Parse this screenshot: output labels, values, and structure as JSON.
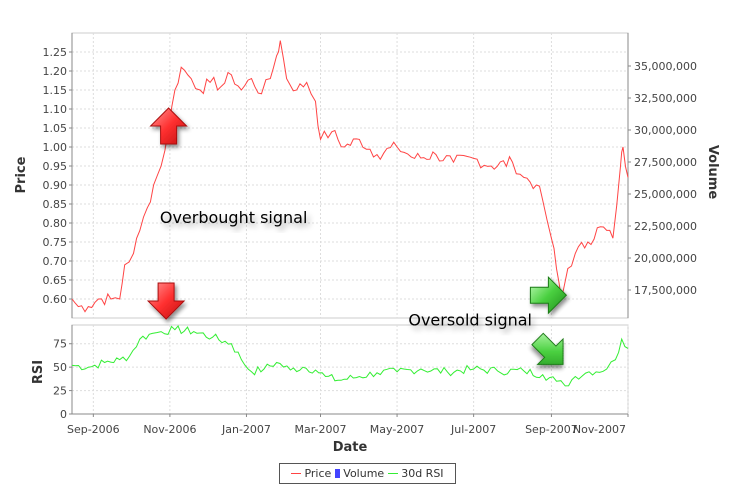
{
  "chart_data": {
    "type": "line",
    "title": "",
    "xlabel": "Date",
    "x_ticks": [
      "Sep-2006",
      "Nov-2006",
      "Jan-2007",
      "Mar-2007",
      "May-2007",
      "Jul-2007",
      "Sep-2007",
      "Nov-2007"
    ],
    "x_range": [
      "2006-08-15",
      "2007-11-01"
    ],
    "price_panel": {
      "ylabel": "Price",
      "ylim": [
        0.55,
        1.3
      ],
      "yticks": [
        "0.60",
        "0.65",
        "0.70",
        "0.75",
        "0.80",
        "0.85",
        "0.90",
        "0.95",
        "1.00",
        "1.05",
        "1.10",
        "1.15",
        "1.20",
        "1.25"
      ],
      "y2label": "Volume",
      "y2ticks": [
        "17,500,000",
        "20,000,000",
        "22,500,000",
        "25,000,000",
        "27,500,000",
        "30,000,000",
        "32,500,000",
        "35,000,000"
      ],
      "series": {
        "name": "Price",
        "color": "#ff4444",
        "points": [
          [
            "2006-08-15",
            0.6
          ],
          [
            "2006-08-20",
            0.58
          ],
          [
            "2006-08-28",
            0.58
          ],
          [
            "2006-09-05",
            0.6
          ],
          [
            "2006-09-15",
            0.6
          ],
          [
            "2006-09-22",
            0.6
          ],
          [
            "2006-09-26",
            0.69
          ],
          [
            "2006-10-03",
            0.72
          ],
          [
            "2006-10-08",
            0.78
          ],
          [
            "2006-10-14",
            0.84
          ],
          [
            "2006-10-19",
            0.9
          ],
          [
            "2006-10-25",
            0.95
          ],
          [
            "2006-10-31",
            1.05
          ],
          [
            "2006-11-05",
            1.15
          ],
          [
            "2006-11-10",
            1.21
          ],
          [
            "2006-11-18",
            1.18
          ],
          [
            "2006-11-25",
            1.15
          ],
          [
            "2006-12-03",
            1.17
          ],
          [
            "2006-12-12",
            1.16
          ],
          [
            "2006-12-20",
            1.19
          ],
          [
            "2006-12-28",
            1.15
          ],
          [
            "2007-01-05",
            1.18
          ],
          [
            "2007-01-13",
            1.14
          ],
          [
            "2007-01-20",
            1.18
          ],
          [
            "2007-01-25",
            1.24
          ],
          [
            "2007-01-28",
            1.28
          ],
          [
            "2007-02-02",
            1.18
          ],
          [
            "2007-02-10",
            1.15
          ],
          [
            "2007-02-18",
            1.17
          ],
          [
            "2007-02-25",
            1.12
          ],
          [
            "2007-03-01",
            1.02
          ],
          [
            "2007-03-10",
            1.04
          ],
          [
            "2007-03-20",
            1.0
          ],
          [
            "2007-04-01",
            1.02
          ],
          [
            "2007-04-15",
            0.98
          ],
          [
            "2007-05-01",
            1.0
          ],
          [
            "2007-05-15",
            0.97
          ],
          [
            "2007-06-01",
            0.98
          ],
          [
            "2007-06-15",
            0.96
          ],
          [
            "2007-07-01",
            0.97
          ],
          [
            "2007-07-15",
            0.95
          ],
          [
            "2007-08-01",
            0.96
          ],
          [
            "2007-08-10",
            0.92
          ],
          [
            "2007-08-20",
            0.9
          ],
          [
            "2007-08-25",
            0.86
          ],
          [
            "2007-09-01",
            0.76
          ],
          [
            "2007-09-05",
            0.68
          ],
          [
            "2007-09-09",
            0.6
          ],
          [
            "2007-09-14",
            0.68
          ],
          [
            "2007-09-20",
            0.72
          ],
          [
            "2007-09-30",
            0.75
          ],
          [
            "2007-10-10",
            0.79
          ],
          [
            "2007-10-20",
            0.76
          ],
          [
            "2007-10-26",
            0.95
          ],
          [
            "2007-10-28",
            1.0
          ],
          [
            "2007-11-01",
            0.92
          ]
        ]
      }
    },
    "rsi_panel": {
      "ylabel": "RSI",
      "ylim": [
        0,
        95
      ],
      "yticks": [
        "0",
        "25",
        "50",
        "75"
      ],
      "series": {
        "name": "30d RSI",
        "color": "#33ee33",
        "points": [
          [
            "2006-08-15",
            52
          ],
          [
            "2006-08-28",
            50
          ],
          [
            "2006-09-10",
            55
          ],
          [
            "2006-09-22",
            58
          ],
          [
            "2006-09-30",
            62
          ],
          [
            "2006-10-08",
            80
          ],
          [
            "2006-10-18",
            86
          ],
          [
            "2006-10-25",
            88
          ],
          [
            "2006-11-05",
            90
          ],
          [
            "2006-11-20",
            88
          ],
          [
            "2006-12-05",
            82
          ],
          [
            "2006-12-20",
            75
          ],
          [
            "2006-12-28",
            58
          ],
          [
            "2007-01-05",
            45
          ],
          [
            "2007-01-15",
            48
          ],
          [
            "2007-01-25",
            55
          ],
          [
            "2007-02-05",
            47
          ],
          [
            "2007-02-15",
            50
          ],
          [
            "2007-02-25",
            47
          ],
          [
            "2007-03-05",
            40
          ],
          [
            "2007-03-15",
            36
          ],
          [
            "2007-04-01",
            40
          ],
          [
            "2007-04-15",
            44
          ],
          [
            "2007-05-01",
            45
          ],
          [
            "2007-05-20",
            48
          ],
          [
            "2007-06-10",
            45
          ],
          [
            "2007-07-01",
            48
          ],
          [
            "2007-07-20",
            46
          ],
          [
            "2007-08-10",
            46
          ],
          [
            "2007-08-25",
            42
          ],
          [
            "2007-09-05",
            35
          ],
          [
            "2007-09-12",
            30
          ],
          [
            "2007-09-20",
            40
          ],
          [
            "2007-10-01",
            45
          ],
          [
            "2007-10-15",
            48
          ],
          [
            "2007-10-22",
            58
          ],
          [
            "2007-10-27",
            80
          ],
          [
            "2007-11-01",
            70
          ]
        ]
      }
    },
    "annotations": [
      {
        "text": "Overbought signal",
        "date": "2006-10-24",
        "value": 0.8,
        "panel": "price"
      },
      {
        "text": "Oversold signal",
        "date": "2007-05-10",
        "value": 0.53,
        "panel": "price"
      }
    ],
    "arrows": [
      {
        "name": "up-arrow",
        "direction": "up",
        "color": "red",
        "date": "2006-10-31",
        "value": 1.05
      },
      {
        "name": "down-arrow",
        "direction": "down",
        "color": "red",
        "date": "2006-10-29",
        "value": 0.6
      },
      {
        "name": "right-arrow",
        "direction": "right",
        "color": "green",
        "date": "2007-08-28",
        "value": 0.61
      },
      {
        "name": "down-right-arrow",
        "direction": "down-right",
        "color": "green",
        "date": "2007-08-30",
        "rsi": 68
      }
    ],
    "legend": {
      "placement": "bottom",
      "items": [
        {
          "name": "Price",
          "color": "#ff4444",
          "kind": "line"
        },
        {
          "name": "Volume",
          "color": "#4444ff",
          "kind": "box"
        },
        {
          "name": "30d RSI",
          "color": "#33ee33",
          "kind": "line"
        }
      ]
    }
  }
}
